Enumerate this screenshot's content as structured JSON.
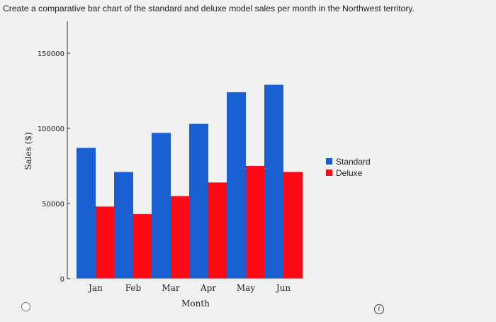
{
  "question": {
    "text": "Create a comparative bar chart of the standard and deluxe model sales per month in the Northwest territory."
  },
  "chart_data": {
    "type": "bar",
    "title": "",
    "xlabel": "Month",
    "ylabel": "Sales ($)",
    "categories": [
      "Jan",
      "Feb",
      "Mar",
      "Apr",
      "May",
      "Jun"
    ],
    "series": [
      {
        "name": "Standard",
        "values": [
          87000,
          71000,
          97000,
          103000,
          124000,
          129000
        ],
        "color": "#1a5fd1"
      },
      {
        "name": "Deluxe",
        "values": [
          48000,
          43000,
          55000,
          64000,
          75000,
          71000
        ],
        "color": "#ff0a14"
      }
    ],
    "yticks": [
      0,
      50000,
      100000,
      150000
    ],
    "ytick_labels": [
      "0",
      "50000",
      "100000",
      "150000"
    ],
    "ylim": [
      0,
      168000
    ],
    "legend_position": "right",
    "grid": false
  },
  "icons": {
    "radio": "radio-button-icon",
    "info": "info-icon",
    "info_glyph": "i"
  }
}
